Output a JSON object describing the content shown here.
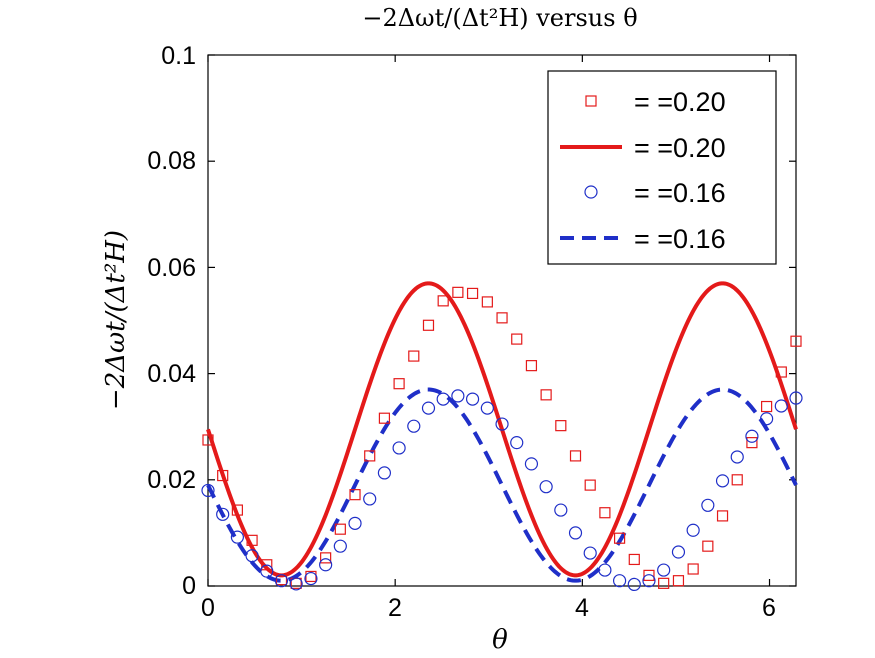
{
  "chart_data": {
    "type": "line",
    "title": "−2Δωt/(Δt²H) versus θ",
    "xlabel": "θ",
    "ylabel": "−2Δωt/(Δt²H)",
    "xlim": [
      0,
      6.283
    ],
    "ylim": [
      0,
      0.1
    ],
    "x_ticks": [
      "0",
      "2",
      "4",
      "6"
    ],
    "y_ticks": [
      "0",
      "0.02",
      "0.04",
      "0.06",
      "0.08",
      "0.1"
    ],
    "grid": false,
    "legend_position": "top-right",
    "series": [
      {
        "name": "= =0.20",
        "style": "markers",
        "marker": "square",
        "color": "#e41a1a",
        "x": [
          0.0,
          0.157,
          0.314,
          0.471,
          0.628,
          0.785,
          0.942,
          1.1,
          1.257,
          1.414,
          1.571,
          1.728,
          1.885,
          2.042,
          2.199,
          2.356,
          2.513,
          2.67,
          2.827,
          2.985,
          3.142,
          3.299,
          3.456,
          3.613,
          3.77,
          3.927,
          4.084,
          4.241,
          4.398,
          4.555,
          4.712,
          4.869,
          5.027,
          5.184,
          5.341,
          5.498,
          5.655,
          5.812,
          5.969,
          6.126,
          6.283
        ],
        "y": [
          0.0275,
          0.0208,
          0.0143,
          0.0086,
          0.004,
          0.0012,
          0.0005,
          0.0018,
          0.0053,
          0.0107,
          0.0172,
          0.0245,
          0.0316,
          0.0381,
          0.0433,
          0.0491,
          0.0537,
          0.0553,
          0.0551,
          0.0535,
          0.0505,
          0.0465,
          0.0415,
          0.036,
          0.0302,
          0.0245,
          0.019,
          0.0138,
          0.009,
          0.005,
          0.002,
          0.0005,
          0.001,
          0.0032,
          0.0075,
          0.0132,
          0.02,
          0.027,
          0.0338,
          0.0403,
          0.0461
        ]
      },
      {
        "name": "= =0.20",
        "style": "solid",
        "color": "#e41a1a",
        "formula": "y = 0.0295 - 0.0275*sin(2x)"
      },
      {
        "name": "= =0.16",
        "style": "markers",
        "marker": "circle",
        "color": "#1f2fc8",
        "x": [
          0.0,
          0.157,
          0.314,
          0.471,
          0.628,
          0.785,
          0.942,
          1.1,
          1.257,
          1.414,
          1.571,
          1.728,
          1.885,
          2.042,
          2.199,
          2.356,
          2.513,
          2.67,
          2.827,
          2.985,
          3.142,
          3.299,
          3.456,
          3.613,
          3.77,
          3.927,
          4.084,
          4.241,
          4.398,
          4.555,
          4.712,
          4.869,
          5.027,
          5.184,
          5.341,
          5.498,
          5.655,
          5.812,
          5.969,
          6.126,
          6.283
        ],
        "y": [
          0.018,
          0.0135,
          0.0092,
          0.0057,
          0.0028,
          0.001,
          0.0004,
          0.0014,
          0.004,
          0.0075,
          0.0118,
          0.0164,
          0.0213,
          0.026,
          0.0301,
          0.0335,
          0.0352,
          0.0358,
          0.0352,
          0.0335,
          0.0305,
          0.027,
          0.023,
          0.0187,
          0.0143,
          0.01,
          0.0062,
          0.003,
          0.001,
          0.0003,
          0.001,
          0.003,
          0.0064,
          0.0105,
          0.0152,
          0.0198,
          0.0243,
          0.0282,
          0.0315,
          0.0339,
          0.0354
        ]
      },
      {
        "name": "= =0.16",
        "style": "dashed",
        "color": "#1f2fc8",
        "formula": "y = 0.0190 - 0.0180*sin(2x)"
      }
    ]
  }
}
